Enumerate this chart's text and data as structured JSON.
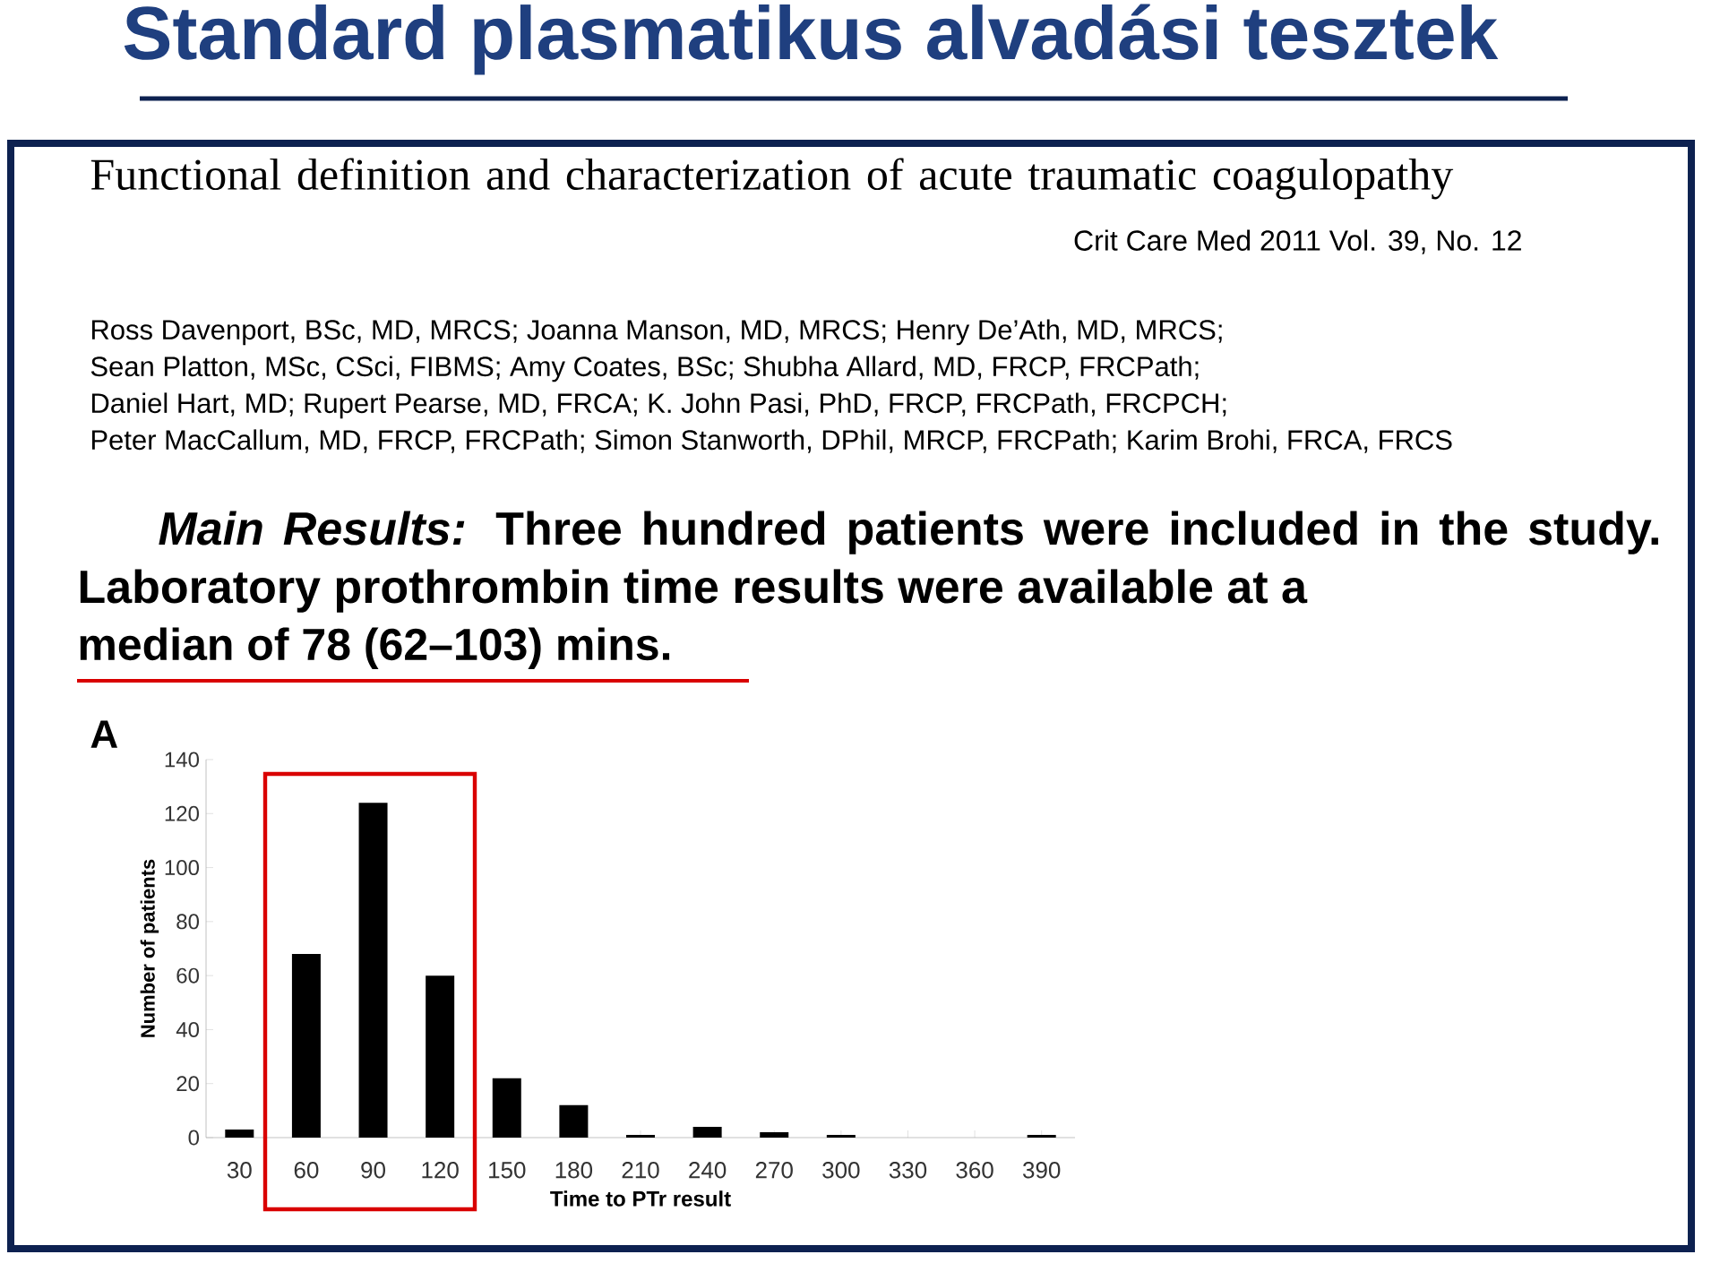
{
  "chart_data": {
    "type": "bar",
    "title": "Standard plasmatikus alvadási tesztek",
    "annotations": [
      "Functional definition and characterization of acute traumatic coagulopathy",
      "Crit Care Med 2011 Vol. 39, No. 12",
      "Ross Davenport, BSc, MD, MRCS; Joanna Manson, MD, MRCS; Henry De’Ath, MD, MRCS;",
      "Sean Platton, MSc, CSci, FIBMS; Amy Coates, BSc; Shubha Allard, MD, FRCP, FRCPath;",
      "Daniel Hart, MD; Rupert Pearse, MD, FRCA; K. John Pasi, PhD, FRCP, FRCPath, FRCPCH;",
      "Peter MacCallum, MD, FRCP, FRCPath; Simon Stanworth, DPhil, MRCP, FRCPath; Karim Brohi, FRCA, FRCS",
      "*Main Results:* Three hundred patients were included in the study. Laboratory prothrombin time results were available at a",
      "median of 78 (62–103) mins.",
      "A"
    ],
    "xlabel": "Time to PTr result",
    "ylabel": "Number of patients",
    "x": [
      30,
      60,
      90,
      120,
      150,
      180,
      210,
      240,
      270,
      300,
      330,
      360,
      390
    ],
    "values": [
      3,
      68,
      124,
      60,
      22,
      12,
      1,
      4,
      2,
      1,
      0,
      0,
      1
    ],
    "color": "#000000",
    "xlim": [
      15,
      405
    ],
    "xticks": [
      30,
      60,
      90,
      120,
      150,
      180,
      210,
      240,
      270,
      300,
      330,
      360,
      390
    ],
    "ylim": [
      0,
      140
    ],
    "yticks": [
      0,
      20,
      40,
      60,
      80,
      100,
      120,
      140
    ]
  }
}
